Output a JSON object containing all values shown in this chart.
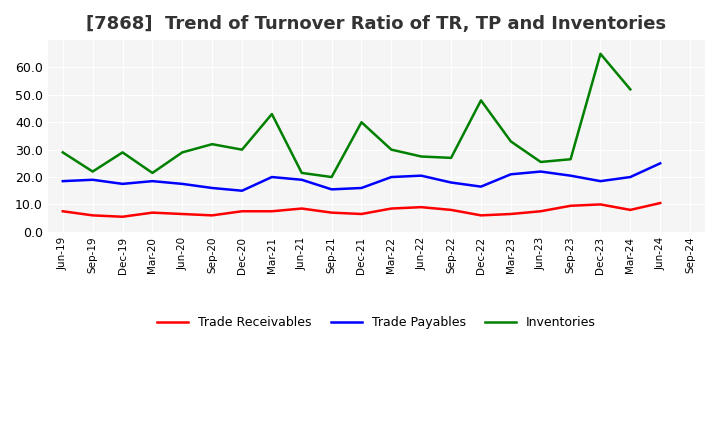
{
  "title": "[7868]  Trend of Turnover Ratio of TR, TP and Inventories",
  "title_fontsize": 13,
  "xlabel": "",
  "ylabel": "",
  "ylim": [
    0,
    70
  ],
  "yticks": [
    0,
    10,
    20,
    30,
    40,
    50,
    60
  ],
  "legend_labels": [
    "Trade Receivables",
    "Trade Payables",
    "Inventories"
  ],
  "legend_colors": [
    "#ff0000",
    "#0000ff",
    "#008000"
  ],
  "x_labels": [
    "Jun-19",
    "Sep-19",
    "Dec-19",
    "Mar-20",
    "Jun-20",
    "Sep-20",
    "Dec-20",
    "Mar-21",
    "Jun-21",
    "Sep-21",
    "Dec-21",
    "Mar-22",
    "Jun-22",
    "Sep-22",
    "Dec-22",
    "Mar-23",
    "Jun-23",
    "Sep-23",
    "Dec-23",
    "Mar-24",
    "Jun-24",
    "Sep-24"
  ],
  "trade_receivables": [
    7.5,
    6.0,
    5.5,
    7.0,
    6.5,
    6.0,
    7.5,
    7.5,
    8.5,
    7.0,
    6.5,
    8.5,
    9.0,
    8.0,
    6.0,
    6.5,
    7.5,
    9.5,
    10.0,
    8.0,
    10.5,
    null
  ],
  "trade_payables": [
    18.5,
    19.0,
    17.5,
    18.5,
    17.5,
    16.0,
    15.0,
    20.0,
    19.0,
    15.5,
    16.0,
    20.0,
    20.5,
    18.0,
    16.5,
    21.0,
    22.0,
    20.5,
    18.5,
    20.0,
    25.0,
    null
  ],
  "inventories": [
    29.0,
    22.0,
    29.0,
    21.5,
    29.0,
    32.0,
    30.0,
    43.0,
    21.5,
    20.0,
    40.0,
    30.0,
    27.5,
    27.0,
    48.0,
    33.0,
    25.5,
    26.5,
    65.0,
    52.0,
    null,
    null
  ],
  "bg_color": "#ffffff",
  "plot_bg_color": "#f5f5f5",
  "grid_color": "#ffffff",
  "line_width": 1.8
}
